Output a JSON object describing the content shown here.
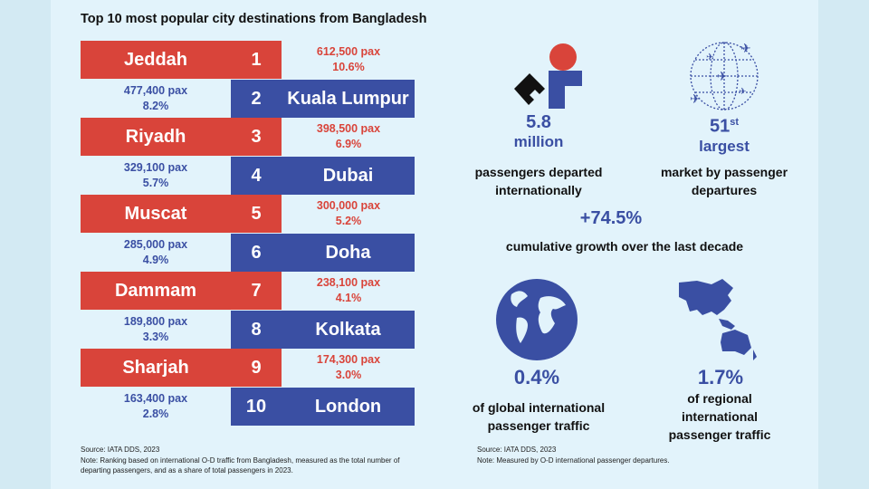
{
  "title": "Top 10 most popular city destinations from Bangladesh",
  "colors": {
    "red": "#d9443a",
    "blue": "#3a4fa3"
  },
  "ranking": [
    {
      "rank": "1",
      "city": "Jeddah",
      "pax": "612,500 pax",
      "share": "10.6%"
    },
    {
      "rank": "2",
      "city": "Kuala Lumpur",
      "pax": "477,400 pax",
      "share": "8.2%"
    },
    {
      "rank": "3",
      "city": "Riyadh",
      "pax": "398,500 pax",
      "share": "6.9%"
    },
    {
      "rank": "4",
      "city": "Dubai",
      "pax": "329,100 pax",
      "share": "5.7%"
    },
    {
      "rank": "5",
      "city": "Muscat",
      "pax": "300,000 pax",
      "share": "5.2%"
    },
    {
      "rank": "6",
      "city": "Doha",
      "pax": "285,000 pax",
      "share": "4.9%"
    },
    {
      "rank": "7",
      "city": "Dammam",
      "pax": "238,100 pax",
      "share": "4.1%"
    },
    {
      "rank": "8",
      "city": "Kolkata",
      "pax": "189,800 pax",
      "share": "3.3%"
    },
    {
      "rank": "9",
      "city": "Sharjah",
      "pax": "174,300 pax",
      "share": "3.0%"
    },
    {
      "rank": "10",
      "city": "London",
      "pax": "163,400 pax",
      "share": "2.8%"
    }
  ],
  "left_source": "Source: IATA DDS, 2023",
  "left_note": "Note: Ranking based on international O-D traffic from Bangladesh, measured as the total number of departing passengers, and as a share of total passengers in 2023.",
  "stats": {
    "passengers": {
      "value": "5.8",
      "unit": "million",
      "label": "passengers departed internationally"
    },
    "rank": {
      "value": "51",
      "suffix": "st",
      "unit": "largest",
      "label": "market by passenger departures"
    },
    "growth": {
      "value": "+74.5%",
      "label": "cumulative growth over the last decade"
    },
    "global": {
      "value": "0.4%",
      "label": "of global international passenger traffic"
    },
    "regional": {
      "value": "1.7%",
      "label": "of regional international passenger traffic"
    }
  },
  "right_source": "Source: IATA DDS, 2023",
  "right_note": "Note: Measured by O-D international passenger departures."
}
